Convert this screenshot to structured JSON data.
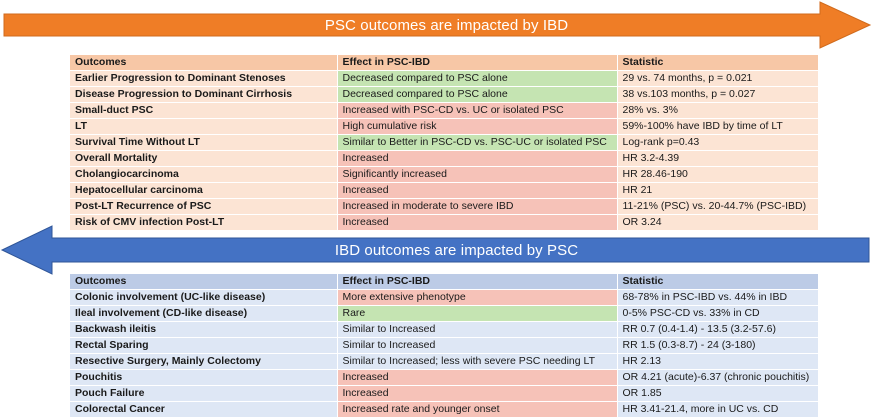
{
  "psc_section": {
    "arrow_label": "PSC outcomes are impacted by IBD",
    "arrow_color": "#ef7d26",
    "headers": [
      "Outcomes",
      "Effect in PSC-IBD",
      "Statistic"
    ],
    "rows": [
      {
        "outcome": "Earlier Progression to Dominant Stenoses",
        "effect": "Decreased compared to PSC alone",
        "statistic": "29 vs. 74 months, p = 0.021",
        "effect_tone": "green"
      },
      {
        "outcome": "Disease Progression to Dominant Cirrhosis",
        "effect": "Decreased compared to PSC alone",
        "statistic": "38 vs.103 months, p = 0.027",
        "effect_tone": "green"
      },
      {
        "outcome": "Small-duct PSC",
        "effect": "Increased with PSC-CD vs. UC or isolated PSC",
        "statistic": "28% vs. 3%",
        "effect_tone": "red"
      },
      {
        "outcome": "LT",
        "effect": "High cumulative risk",
        "statistic": "59%-100% have IBD by time of LT",
        "effect_tone": "red"
      },
      {
        "outcome": "Survival Time Without LT",
        "effect": "Similar to Better in PSC-CD vs. PSC-UC or isolated PSC",
        "statistic": "Log-rank p=0.43",
        "effect_tone": "green"
      },
      {
        "outcome": "Overall Mortality",
        "effect": "Increased",
        "statistic": "HR 3.2-4.39",
        "effect_tone": "red"
      },
      {
        "outcome": "Cholangiocarcinoma",
        "effect": "Significantly increased",
        "statistic": "HR 28.46-190",
        "effect_tone": "red"
      },
      {
        "outcome": "Hepatocellular carcinoma",
        "effect": "Increased",
        "statistic": "HR 21",
        "effect_tone": "red"
      },
      {
        "outcome": "Post-LT Recurrence of PSC",
        "effect": "Increased in moderate to severe IBD",
        "statistic": "11-21% (PSC) vs. 20-44.7% (PSC-IBD)",
        "effect_tone": "red"
      },
      {
        "outcome": "Risk of CMV infection Post-LT",
        "effect": "Increased",
        "statistic": "OR 3.24",
        "effect_tone": "red"
      }
    ]
  },
  "ibd_section": {
    "arrow_label": "IBD outcomes are impacted by PSC",
    "arrow_color": "#4472c4",
    "headers": [
      "Outcomes",
      "Effect in PSC-IBD",
      "Statistic"
    ],
    "rows": [
      {
        "outcome": "Colonic involvement (UC-like disease)",
        "effect": "More extensive phenotype",
        "statistic": "68-78% in PSC-IBD vs. 44% in IBD",
        "effect_tone": "red"
      },
      {
        "outcome": "Ileal involvement (CD-like disease)",
        "effect": "Rare",
        "statistic": "0-5% PSC-CD vs. 33% in CD",
        "effect_tone": "green"
      },
      {
        "outcome": "Backwash ileitis",
        "effect": "Similar to Increased",
        "statistic": "RR 0.7 (0.4-1.4) - 13.5 (3.2-57.6)",
        "effect_tone": "none"
      },
      {
        "outcome": "Rectal Sparing",
        "effect": "Similar to Increased",
        "statistic": "RR 1.5 (0.3-8.7) - 24 (3-180)",
        "effect_tone": "none"
      },
      {
        "outcome": "Resective Surgery, Mainly Colectomy",
        "effect": "Similar to Increased; less with severe PSC needing LT",
        "statistic": "HR 2.13",
        "effect_tone": "none"
      },
      {
        "outcome": "Pouchitis",
        "effect": "Increased",
        "statistic": "OR 4.21 (acute)-6.37 (chronic pouchitis)",
        "effect_tone": "red"
      },
      {
        "outcome": "Pouch Failure",
        "effect": "Increased",
        "statistic": "OR 1.85",
        "effect_tone": "red"
      },
      {
        "outcome": "Colorectal Cancer",
        "effect": "Increased rate and younger onset",
        "statistic": "HR 3.41-21.4, more in UC vs. CD",
        "effect_tone": "red"
      }
    ]
  }
}
